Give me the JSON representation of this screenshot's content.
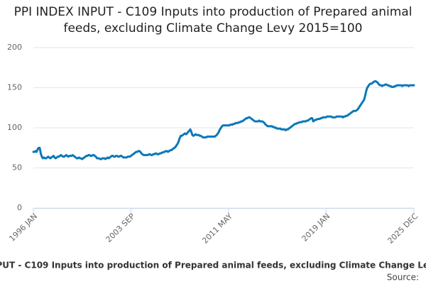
{
  "chart_data": {
    "type": "line",
    "title": "PPI INDEX INPUT - C109 Inputs into production of Prepared animal feeds, excluding Climate Change Levy 2015=100",
    "source": "Source:",
    "categories": [
      "1996 JAN",
      null,
      null,
      null,
      null,
      null,
      null,
      null,
      null,
      null,
      null,
      null,
      null,
      null,
      null,
      null,
      null,
      null,
      null,
      null,
      null,
      null,
      null,
      null,
      null,
      null,
      null,
      null,
      null,
      null,
      null,
      null,
      null,
      null,
      null,
      null,
      null,
      null,
      null,
      null,
      null,
      null,
      null,
      null,
      null,
      null,
      null,
      null,
      null,
      null,
      null,
      null,
      null,
      null,
      null,
      null,
      null,
      null,
      null,
      null,
      null,
      null,
      null,
      null,
      null,
      null,
      null,
      null,
      null,
      null,
      null,
      null,
      null,
      null,
      null,
      null,
      null,
      null,
      null,
      null,
      null,
      null,
      null,
      null,
      null,
      null,
      null,
      null,
      null,
      null,
      null,
      null,
      "2003 SEP",
      null,
      null,
      null,
      null,
      null,
      null,
      null,
      null,
      null,
      null,
      null,
      null,
      null,
      null,
      null,
      null,
      null,
      null,
      null,
      null,
      null,
      null,
      null,
      null,
      null,
      null,
      null,
      null,
      null,
      null,
      null,
      null,
      null,
      null,
      null,
      null,
      null,
      null,
      null,
      null,
      null,
      null,
      null,
      null,
      null,
      null,
      null,
      null,
      null,
      null,
      null,
      null,
      null,
      null,
      null,
      null,
      null,
      null,
      null,
      null,
      null,
      null,
      null,
      null,
      null,
      null,
      null,
      null,
      null,
      null,
      null,
      null,
      null,
      null,
      null,
      null,
      null,
      null,
      null,
      null,
      null,
      null,
      null,
      null,
      null,
      null,
      null,
      null,
      null,
      null,
      null,
      "2011 MAY",
      null,
      null,
      null,
      null,
      null,
      null,
      null,
      null,
      null,
      null,
      null,
      null,
      null,
      null,
      null,
      null,
      null,
      null,
      null,
      null,
      null,
      null,
      null,
      null,
      null,
      null,
      null,
      null,
      null,
      null,
      null,
      null,
      null,
      null,
      null,
      null,
      null,
      null,
      null,
      null,
      null,
      null,
      null,
      null,
      null,
      null,
      null,
      null,
      null,
      null,
      null,
      null,
      null,
      null,
      null,
      null,
      null,
      null,
      null,
      null,
      null,
      null,
      null,
      null,
      null,
      null,
      null,
      null,
      null,
      null,
      null,
      null,
      null,
      null,
      null,
      null,
      null,
      null,
      null,
      null,
      null,
      null,
      null,
      null,
      null,
      null,
      null,
      null,
      null,
      null,
      null,
      "2019 JAN",
      null,
      null,
      null,
      null,
      null,
      null,
      null,
      null,
      null,
      null,
      null,
      null,
      null,
      null,
      null,
      null,
      null,
      null,
      null,
      null,
      null,
      null,
      null,
      null,
      null,
      null,
      null,
      null,
      null,
      null,
      null,
      null,
      null,
      null,
      null,
      null,
      null,
      null,
      null,
      null,
      null,
      null,
      null,
      null,
      null,
      null,
      null,
      null,
      null,
      null,
      null,
      null,
      null,
      null,
      null,
      null,
      null,
      null,
      null,
      null,
      null,
      null,
      null,
      null,
      null,
      null,
      null,
      null,
      null,
      null,
      null,
      null,
      null,
      null,
      null,
      null,
      null,
      null,
      null,
      null,
      null,
      null,
      "2025 DEC"
    ],
    "series": [
      {
        "name": "PPI INDEX INPUT - C109 Inputs into production of Prepared animal feeds, excluding Climate Change Levy 2015=100",
        "color": "#0b78b8",
        "values": [
          70,
          70,
          71,
          70,
          73,
          75,
          75,
          68,
          64,
          62,
          63,
          62,
          62,
          63,
          64,
          63,
          62,
          63,
          64,
          65,
          63,
          62,
          63,
          64,
          64,
          65,
          66,
          65,
          64,
          64,
          65,
          66,
          65,
          64,
          65,
          65,
          65,
          66,
          65,
          64,
          63,
          62,
          62,
          63,
          62,
          62,
          61,
          62,
          63,
          64,
          65,
          65,
          66,
          66,
          65,
          65,
          66,
          66,
          65,
          64,
          62,
          62,
          62,
          61,
          61,
          62,
          62,
          62,
          61,
          62,
          63,
          62,
          63,
          64,
          65,
          65,
          64,
          64,
          65,
          65,
          64,
          64,
          65,
          65,
          64,
          63,
          63,
          63,
          63,
          64,
          64,
          64,
          65,
          66,
          67,
          68,
          69,
          70,
          70,
          71,
          71,
          70,
          68,
          67,
          66,
          66,
          66,
          66,
          66,
          67,
          67,
          66,
          66,
          67,
          67,
          68,
          68,
          67,
          67,
          68,
          68,
          69,
          69,
          70,
          70,
          71,
          71,
          70,
          71,
          72,
          72,
          73,
          74,
          75,
          76,
          78,
          80,
          83,
          87,
          90,
          90,
          91,
          92,
          93,
          92,
          93,
          95,
          96,
          98,
          95,
          91,
          90,
          91,
          92,
          91,
          91,
          91,
          90,
          90,
          89,
          88,
          88,
          88,
          88,
          89,
          89,
          89,
          89,
          89,
          89,
          89,
          89,
          90,
          91,
          93,
          95,
          98,
          100,
          102,
          103,
          103,
          103,
          103,
          103,
          103,
          103,
          104,
          104,
          104,
          105,
          105,
          106,
          106,
          106,
          107,
          107,
          108,
          108,
          109,
          110,
          111,
          112,
          112,
          113,
          113,
          112,
          111,
          110,
          109,
          108,
          108,
          108,
          108,
          109,
          108,
          108,
          108,
          107,
          106,
          104,
          103,
          102,
          102,
          102,
          102,
          102,
          101,
          101,
          100,
          100,
          99,
          99,
          99,
          99,
          98,
          98,
          98,
          98,
          97,
          98,
          98,
          99,
          100,
          101,
          102,
          103,
          104,
          105,
          105,
          106,
          106,
          107,
          107,
          107,
          108,
          108,
          108,
          108,
          109,
          109,
          110,
          111,
          112,
          112,
          108,
          109,
          110,
          110,
          111,
          111,
          111,
          112,
          112,
          113,
          113,
          113,
          113,
          114,
          114,
          114,
          114,
          114,
          113,
          113,
          113,
          113,
          114,
          114,
          114,
          114,
          114,
          114,
          113,
          114,
          114,
          115,
          115,
          116,
          117,
          118,
          119,
          120,
          121,
          121,
          121,
          122,
          123,
          125,
          127,
          129,
          131,
          133,
          135,
          140,
          146,
          150,
          152,
          154,
          155,
          155,
          156,
          157,
          158,
          158,
          157,
          156,
          154,
          153,
          153,
          152,
          153,
          153,
          154,
          154,
          153,
          153,
          152,
          152,
          151,
          151,
          151,
          152,
          152,
          153,
          153,
          153,
          153,
          153,
          152,
          153,
          153,
          153,
          153,
          153,
          152,
          153,
          153,
          153,
          153,
          153
        ]
      }
    ],
    "ylim": [
      0,
      200
    ],
    "yticks": [
      0,
      50,
      100,
      150,
      200
    ],
    "grid": true
  }
}
